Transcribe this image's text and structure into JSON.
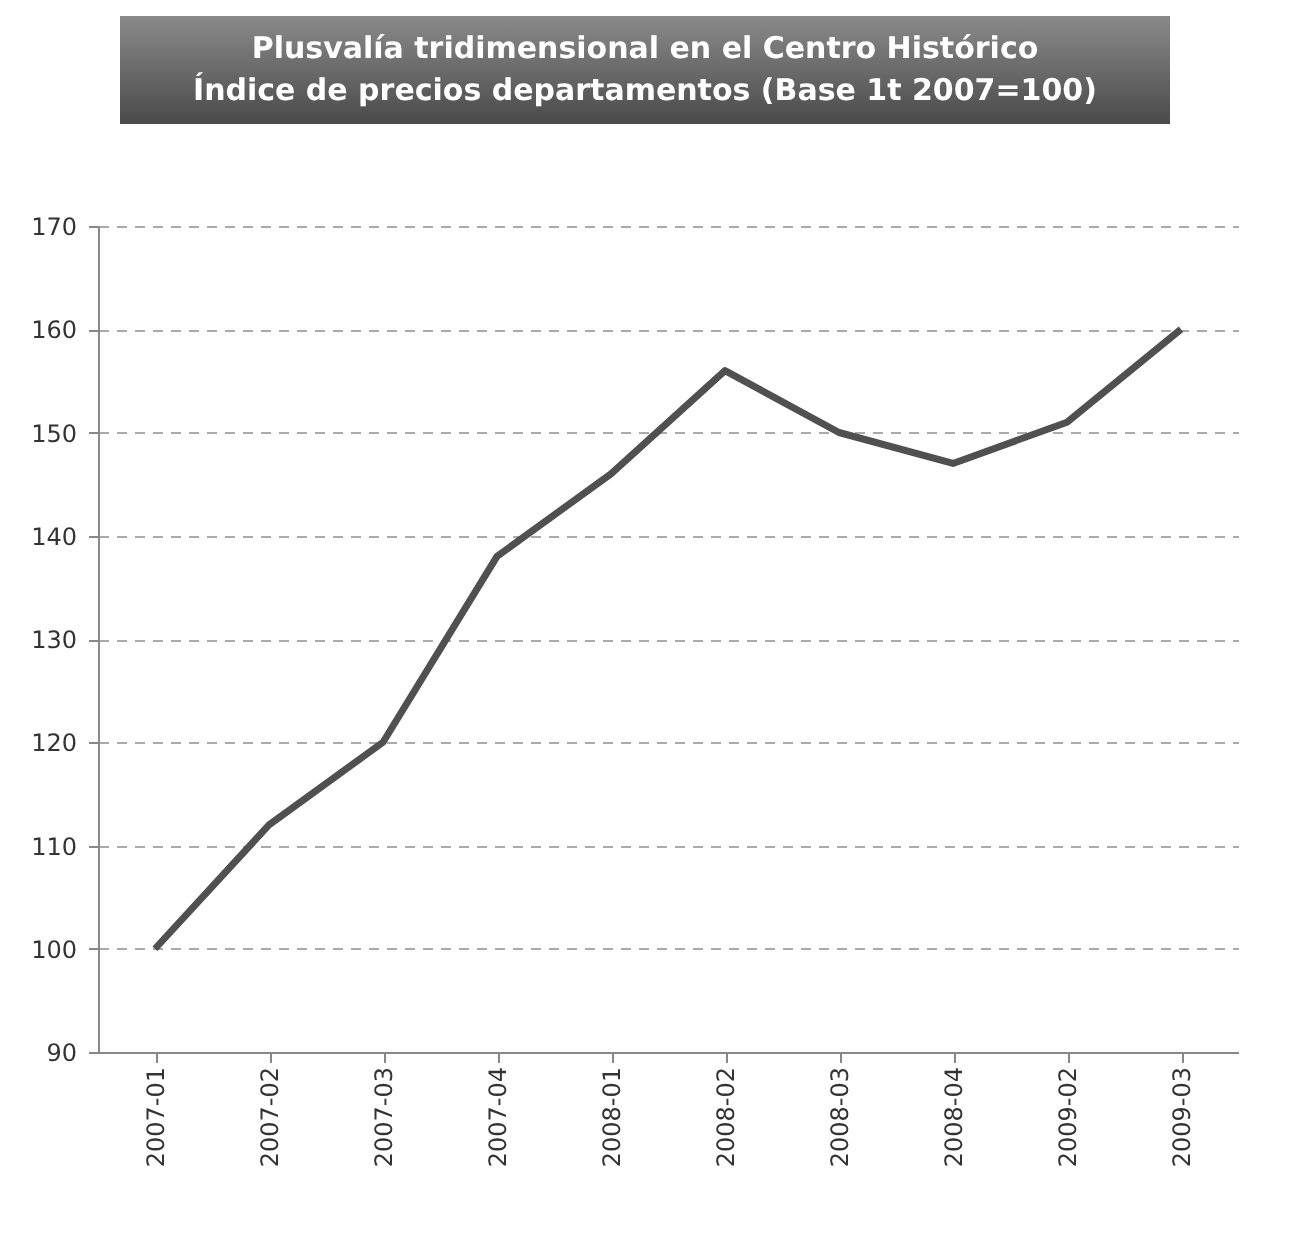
{
  "chart_data": {
    "type": "line",
    "title": "Plusvalía tridimensional en el Centro Histórico",
    "subtitle": "Índice de precios departamentos (Base 1t 2007=100)",
    "categories": [
      "2007-01",
      "2007-02",
      "2007-03",
      "2007-04",
      "2008-01",
      "2008-02",
      "2008-03",
      "2008-04",
      "2009-02",
      "2009-03"
    ],
    "series": [
      {
        "color": "#505050",
        "values": [
          100,
          112,
          120,
          138,
          146,
          156,
          150,
          147,
          151,
          160
        ]
      }
    ],
    "ylim": [
      90,
      170
    ],
    "yticks": [
      90,
      100,
      110,
      120,
      130,
      140,
      150,
      160,
      170
    ],
    "grid": "y",
    "line_style": "solid",
    "marker": "none"
  }
}
